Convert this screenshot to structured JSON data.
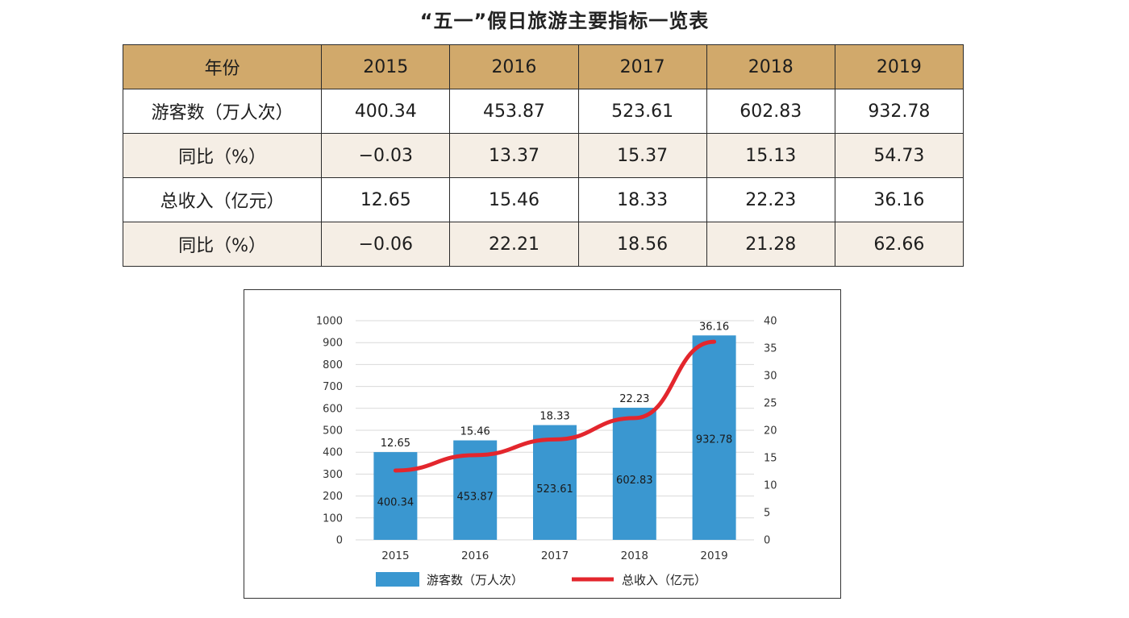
{
  "title": "“五一”假日旅游主要指标一览表",
  "table": {
    "header": [
      "年份",
      "2015",
      "2016",
      "2017",
      "2018",
      "2019"
    ],
    "rows": [
      {
        "label": "游客数（万人次）",
        "values": [
          "400.34",
          "453.87",
          "523.61",
          "602.83",
          "932.78"
        ],
        "shaded": false
      },
      {
        "label": "同比（%）",
        "values": [
          "−0.03",
          "13.37",
          "15.37",
          "15.13",
          "54.73"
        ],
        "shaded": true
      },
      {
        "label": "总收入（亿元）",
        "values": [
          "12.65",
          "15.46",
          "18.33",
          "22.23",
          "36.16"
        ],
        "shaded": false
      },
      {
        "label": "同比（%）",
        "values": [
          "−0.06",
          "22.21",
          "18.56",
          "21.28",
          "62.66"
        ],
        "shaded": true
      }
    ],
    "header_color": "#d1a96b",
    "shade_color": "#f5eee5"
  },
  "chart_data": {
    "type": "bar",
    "categories": [
      "2015",
      "2016",
      "2017",
      "2018",
      "2019"
    ],
    "series": [
      {
        "name": "游客数（万人次）",
        "type": "bar",
        "axis": "left",
        "color": "#3a97d0",
        "values": [
          400.34,
          453.87,
          523.61,
          602.83,
          932.78
        ],
        "labels": [
          "400.34",
          "453.87",
          "523.61",
          "602.83",
          "932.78"
        ]
      },
      {
        "name": "总收入（亿元）",
        "type": "line",
        "axis": "right",
        "color": "#e3262d",
        "values": [
          12.65,
          15.46,
          18.33,
          22.23,
          36.16
        ],
        "labels": [
          "12.65",
          "15.46",
          "18.33",
          "22.23",
          "36.16"
        ]
      }
    ],
    "y_left": {
      "min": 0,
      "max": 1000,
      "ticks": [
        "0",
        "100",
        "200",
        "300",
        "400",
        "500",
        "600",
        "700",
        "800",
        "900",
        "1000"
      ]
    },
    "y_right": {
      "min": 0,
      "max": 40,
      "ticks": [
        "0",
        "5",
        "10",
        "15",
        "20",
        "25",
        "30",
        "35",
        "40"
      ]
    },
    "grid": true,
    "legend_position": "bottom"
  }
}
